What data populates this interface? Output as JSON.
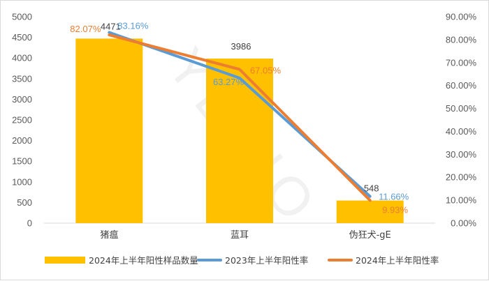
{
  "chart_data": {
    "type": "bar",
    "categories": [
      "猪瘟",
      "蓝耳",
      "伪狂犬-gE"
    ],
    "left_axis": {
      "ylim": [
        0,
        5000
      ],
      "ticks": [
        "0",
        "500",
        "1000",
        "1500",
        "2000",
        "2500",
        "3000",
        "3500",
        "4000",
        "4500",
        "5000"
      ]
    },
    "right_axis": {
      "ylim": [
        0,
        90
      ],
      "ticks": [
        "0.00%",
        "10.00%",
        "20.00%",
        "30.00%",
        "40.00%",
        "50.00%",
        "60.00%",
        "70.00%",
        "80.00%",
        "90.00%"
      ]
    },
    "series": [
      {
        "name": "2024年上半年阳性样品数量",
        "kind": "bar",
        "axis": "left",
        "color": "#FFC000",
        "values": [
          4471,
          3986,
          548
        ],
        "labels": [
          "4471",
          "3986",
          "548"
        ]
      },
      {
        "name": "2023年上半年阳性率",
        "kind": "line",
        "axis": "right",
        "color": "#5B9BD5",
        "values": [
          83.16,
          63.27,
          11.66
        ],
        "labels": [
          "83.16%",
          "63.27%",
          "11.66%"
        ]
      },
      {
        "name": "2024年上半年阳性率",
        "kind": "line",
        "axis": "right",
        "color": "#ED7D31",
        "values": [
          82.07,
          67.05,
          9.93
        ],
        "labels": [
          "82.07%",
          "67.05%",
          "9.93%"
        ]
      }
    ],
    "grid": false,
    "legend_position": "bottom",
    "watermark": "YEBIO"
  }
}
